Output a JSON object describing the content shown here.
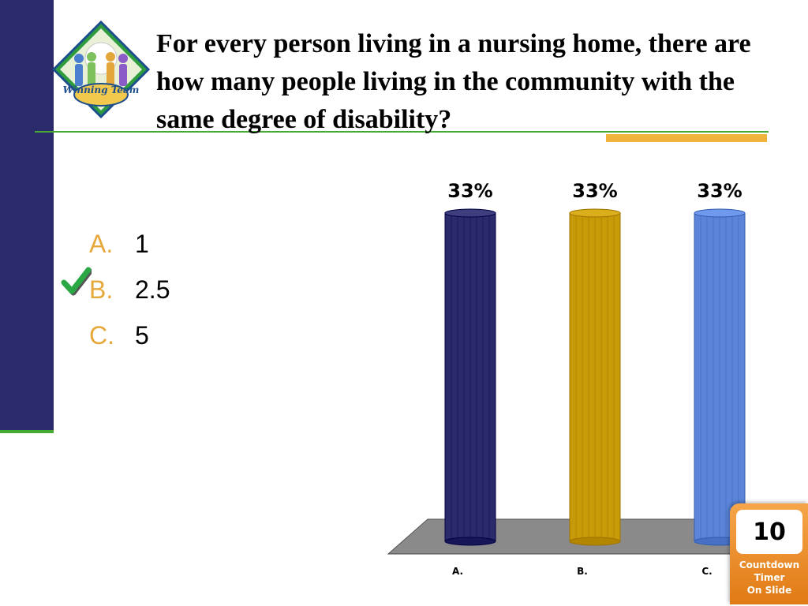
{
  "slide": {
    "question": "For every person living in a nursing home, there are how many people living in the community with the same degree of disability?",
    "logo_text": "Winning Team"
  },
  "answers": [
    {
      "letter": "A.",
      "value": "1",
      "correct": false
    },
    {
      "letter": "B.",
      "value": "2.5",
      "correct": true
    },
    {
      "letter": "C.",
      "value": "5",
      "correct": false
    }
  ],
  "chart_data": {
    "type": "bar",
    "categories": [
      "A.",
      "B.",
      "C."
    ],
    "values": [
      33,
      33,
      33
    ],
    "data_labels": [
      "33%",
      "33%",
      "33%"
    ],
    "colors": [
      "#2b2b6b",
      "#c79a08",
      "#5b85d9"
    ],
    "ylim": [
      0,
      33
    ],
    "title": "",
    "xlabel": "",
    "ylabel": ""
  },
  "timer": {
    "value": "10",
    "label_lines": [
      "Countdown",
      "Timer",
      "On Slide"
    ]
  },
  "colors": {
    "sidebar": "#2b2b6b",
    "accent_green": "#44aa33",
    "answer_letter": "#e6a83a",
    "highlight": "#f0b43c"
  }
}
